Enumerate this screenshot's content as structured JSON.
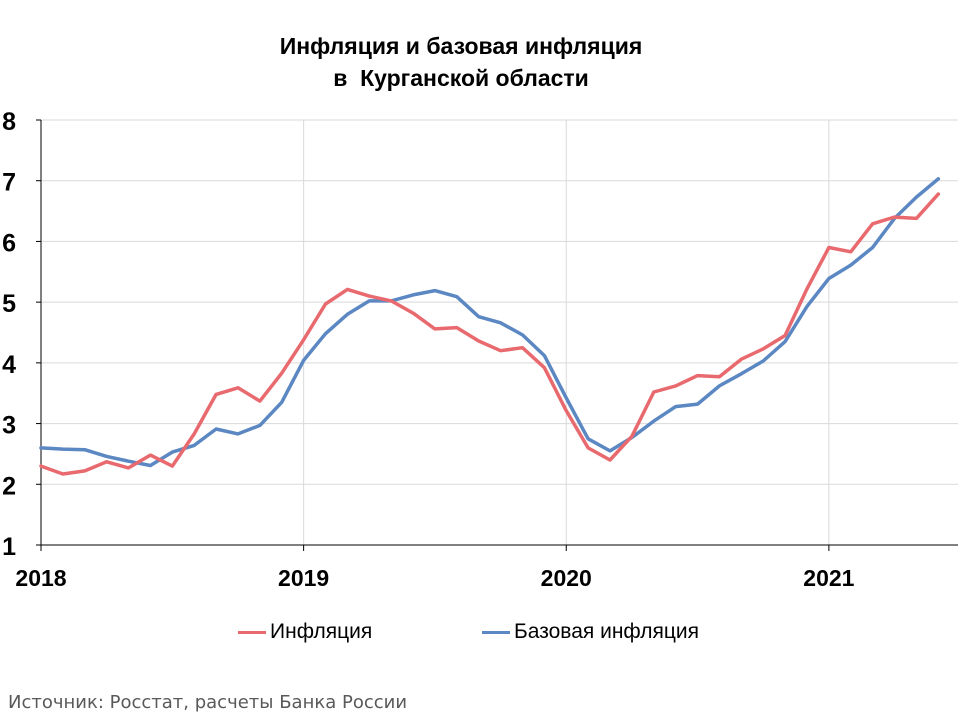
{
  "colors": {
    "inflation": "#E8696E",
    "core": "#5B87C2",
    "grid": "#D9D9D9",
    "axis": "#000000"
  },
  "title": {
    "line1": "Инфляция и базовая инфляция",
    "line2": "в  Курганской области"
  },
  "source": "Источник: Росстат, расчеты Банка России",
  "chart_data": {
    "type": "line",
    "title": "Инфляция и базовая инфляция в Курганской области",
    "xlabel": "",
    "ylabel": "",
    "ylim": [
      1,
      8
    ],
    "yticks": [
      "1",
      "2",
      "3",
      "4",
      "5",
      "6",
      "7",
      "8"
    ],
    "xticks": [
      "2018",
      "2019",
      "2020",
      "2021"
    ],
    "x": [
      "2018-01",
      "2018-02",
      "2018-03",
      "2018-04",
      "2018-05",
      "2018-06",
      "2018-07",
      "2018-08",
      "2018-09",
      "2018-10",
      "2018-11",
      "2018-12",
      "2019-01",
      "2019-02",
      "2019-03",
      "2019-04",
      "2019-05",
      "2019-06",
      "2019-07",
      "2019-08",
      "2019-09",
      "2019-10",
      "2019-11",
      "2019-12",
      "2020-01",
      "2020-02",
      "2020-03",
      "2020-04",
      "2020-05",
      "2020-06",
      "2020-07",
      "2020-08",
      "2020-09",
      "2020-10",
      "2020-11",
      "2020-12",
      "2021-01",
      "2021-02",
      "2021-03",
      "2021-04",
      "2021-05",
      "2021-06"
    ],
    "grid": true,
    "legend_position": "bottom",
    "series": [
      {
        "name": "Инфляция",
        "color": "#E8696E",
        "values": [
          2.3,
          2.17,
          2.22,
          2.37,
          2.27,
          2.48,
          2.3,
          2.83,
          3.48,
          3.59,
          3.37,
          3.83,
          4.38,
          4.97,
          5.21,
          5.1,
          5.02,
          4.82,
          4.56,
          4.58,
          4.36,
          4.2,
          4.25,
          3.92,
          3.21,
          2.6,
          2.4,
          2.79,
          3.52,
          3.62,
          3.79,
          3.77,
          4.06,
          4.23,
          4.45,
          5.22,
          5.9,
          5.83,
          6.29,
          6.4,
          6.38,
          6.78
        ]
      },
      {
        "name": "Базовая инфляция",
        "color": "#5B87C2",
        "values": [
          2.6,
          2.58,
          2.57,
          2.46,
          2.38,
          2.31,
          2.53,
          2.64,
          2.91,
          2.83,
          2.97,
          3.35,
          4.04,
          4.48,
          4.8,
          5.02,
          5.02,
          5.12,
          5.19,
          5.09,
          4.76,
          4.66,
          4.46,
          4.12,
          3.42,
          2.75,
          2.55,
          2.77,
          3.04,
          3.28,
          3.32,
          3.62,
          3.82,
          4.03,
          4.35,
          4.93,
          5.39,
          5.61,
          5.9,
          6.38,
          6.73,
          7.03
        ]
      }
    ]
  }
}
